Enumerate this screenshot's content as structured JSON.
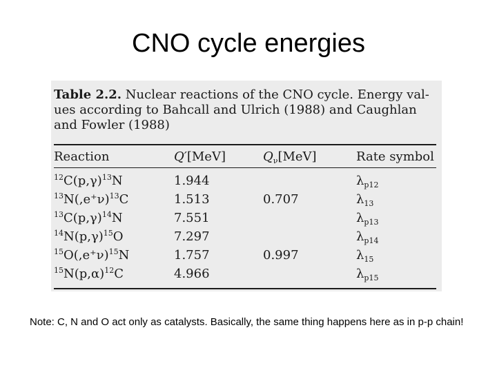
{
  "title": "CNO cycle energies",
  "table": {
    "caption_label": "Table 2.2.",
    "caption_text": "Nuclear reactions of the CNO cycle. Energy val-ues according to Bahcall and Ulrich (1988) and Caughlan and Fowler (1988)",
    "headers": {
      "reaction": "Reaction",
      "q_symbol": "Q′",
      "q_unit": "[MeV]",
      "qnu_symbol": "Q",
      "qnu_sub": "ν",
      "qnu_unit": "[MeV]",
      "rate": "Rate symbol"
    },
    "rows": [
      {
        "r1_mass": "12",
        "r1_el": "C",
        "r1_proc": "(p,γ)",
        "r2_mass": "13",
        "r2_el": "N",
        "q": "1.944",
        "qnu": "",
        "rate_sym": "λ",
        "rate_sub": "p12"
      },
      {
        "r1_mass": "13",
        "r1_el": "N",
        "r1_proc": "(,e⁺ν)",
        "r2_mass": "13",
        "r2_el": "C",
        "q": "1.513",
        "qnu": "0.707",
        "rate_sym": "λ",
        "rate_sub": "13"
      },
      {
        "r1_mass": "13",
        "r1_el": "C",
        "r1_proc": "(p,γ)",
        "r2_mass": "14",
        "r2_el": "N",
        "q": "7.551",
        "qnu": "",
        "rate_sym": "λ",
        "rate_sub": "p13"
      },
      {
        "r1_mass": "14",
        "r1_el": "N",
        "r1_proc": "(p,γ)",
        "r2_mass": "15",
        "r2_el": "O",
        "q": "7.297",
        "qnu": "",
        "rate_sym": "λ",
        "rate_sub": "p14"
      },
      {
        "r1_mass": "15",
        "r1_el": "O",
        "r1_proc": "(,e⁺ν)",
        "r2_mass": "15",
        "r2_el": "N",
        "q": "1.757",
        "qnu": "0.997",
        "rate_sym": "λ",
        "rate_sub": "15"
      },
      {
        "r1_mass": "15",
        "r1_el": "N",
        "r1_proc": "(p,α)",
        "r2_mass": "12",
        "r2_el": "C",
        "q": "4.966",
        "qnu": "",
        "rate_sym": "λ",
        "rate_sub": "p15"
      }
    ]
  },
  "note": "Note: C, N and O act only as catalysts. Basically, the same thing happens here as in p-p chain!"
}
